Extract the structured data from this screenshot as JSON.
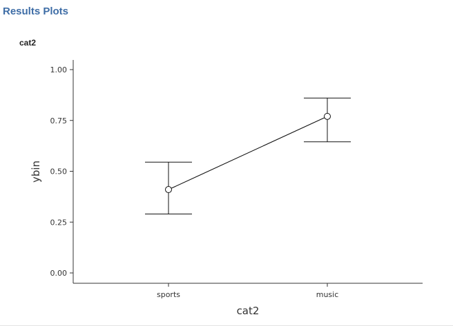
{
  "header": {
    "title": "Results Plots"
  },
  "chart_data": {
    "type": "line",
    "title": "cat2",
    "xlabel": "cat2",
    "ylabel": "ybin",
    "categories": [
      "sports",
      "music"
    ],
    "series": [
      {
        "values": [
          0.41,
          0.77
        ],
        "lower": [
          0.29,
          0.645
        ],
        "upper": [
          0.545,
          0.86
        ]
      }
    ],
    "ylim": [
      0,
      1
    ],
    "yticks": [
      "0.00",
      "0.25",
      "0.50",
      "0.75",
      "1.00"
    ],
    "ytick_values": [
      0,
      0.25,
      0.5,
      0.75,
      1.0
    ],
    "grid": false,
    "error_bars": true
  }
}
